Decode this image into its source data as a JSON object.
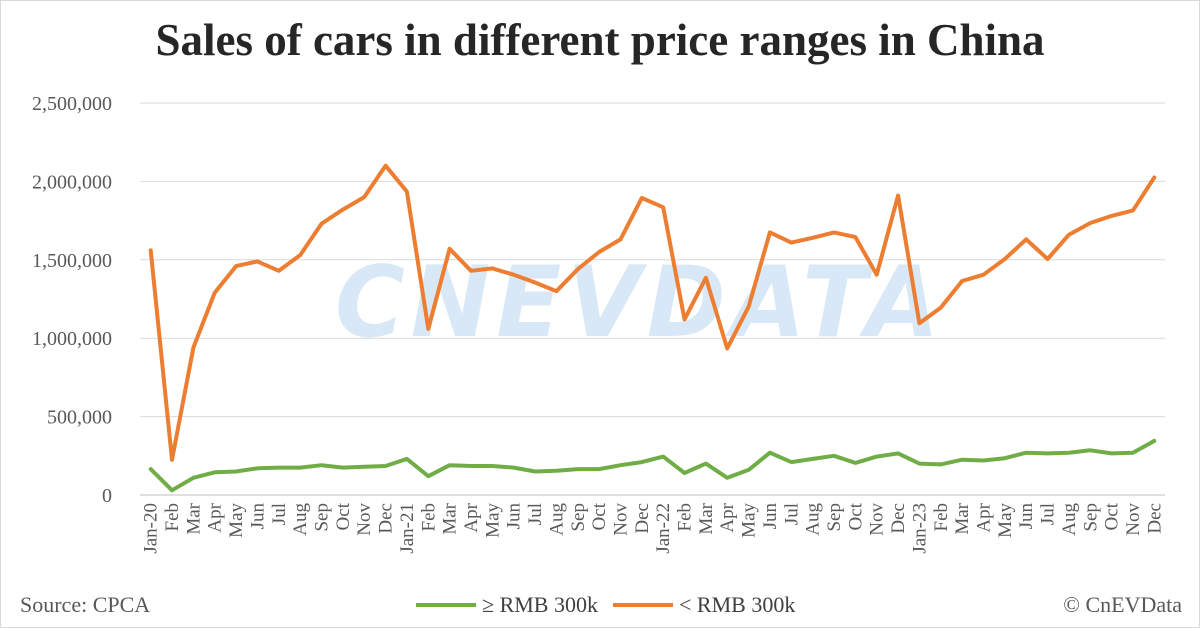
{
  "title": "Sales of cars in different price ranges in China",
  "source": "Source: CPCA",
  "copyright": "© CnEVData",
  "watermark": "CNEVDATA",
  "chart_data": {
    "type": "line",
    "title": "Sales of cars in different price ranges in China",
    "xlabel": "",
    "ylabel": "",
    "ylim": [
      0,
      2500000
    ],
    "yticks": [
      0,
      500000,
      1000000,
      1500000,
      2000000,
      2500000
    ],
    "ytick_labels": [
      "0",
      "500,000",
      "1,000,000",
      "1,500,000",
      "2,000,000",
      "2,500,000"
    ],
    "grid": "horizontal",
    "legend_position": "bottom",
    "categories": [
      "Jan-20",
      "Feb",
      "Mar",
      "Apr",
      "May",
      "Jun",
      "Jul",
      "Aug",
      "Sep",
      "Oct",
      "Nov",
      "Dec",
      "Jan-21",
      "Feb",
      "Mar",
      "Apr",
      "May",
      "Jun",
      "Jul",
      "Aug",
      "Sep",
      "Oct",
      "Nov",
      "Dec",
      "Jan-22",
      "Feb",
      "Mar",
      "Apr",
      "May",
      "Jun",
      "Jul",
      "Aug",
      "Sep",
      "Oct",
      "Nov",
      "Dec",
      "Jan-23",
      "Feb",
      "Mar",
      "Apr",
      "May",
      "Jun",
      "Jul",
      "Aug",
      "Sep",
      "Oct",
      "Nov",
      "Dec"
    ],
    "series": [
      {
        "name": "≥ RMB 300k",
        "color": "#70ad47",
        "values": [
          165000,
          30000,
          110000,
          145000,
          150000,
          170000,
          175000,
          175000,
          190000,
          175000,
          180000,
          185000,
          230000,
          120000,
          190000,
          185000,
          185000,
          175000,
          150000,
          155000,
          165000,
          165000,
          190000,
          210000,
          245000,
          140000,
          200000,
          110000,
          160000,
          270000,
          210000,
          230000,
          250000,
          205000,
          245000,
          265000,
          200000,
          195000,
          225000,
          220000,
          235000,
          270000,
          265000,
          270000,
          285000,
          265000,
          270000,
          345000
        ]
      },
      {
        "name": "< RMB 300k",
        "color": "#ed7d31",
        "values": [
          1560000,
          225000,
          940000,
          1290000,
          1460000,
          1490000,
          1430000,
          1530000,
          1730000,
          1820000,
          1900000,
          2100000,
          1935000,
          1060000,
          1570000,
          1430000,
          1445000,
          1405000,
          1355000,
          1300000,
          1440000,
          1550000,
          1630000,
          1895000,
          1835000,
          1120000,
          1385000,
          935000,
          1200000,
          1675000,
          1610000,
          1640000,
          1675000,
          1645000,
          1405000,
          1910000,
          1095000,
          1195000,
          1365000,
          1405000,
          1505000,
          1630000,
          1505000,
          1660000,
          1735000,
          1780000,
          1815000,
          2025000
        ]
      }
    ]
  }
}
